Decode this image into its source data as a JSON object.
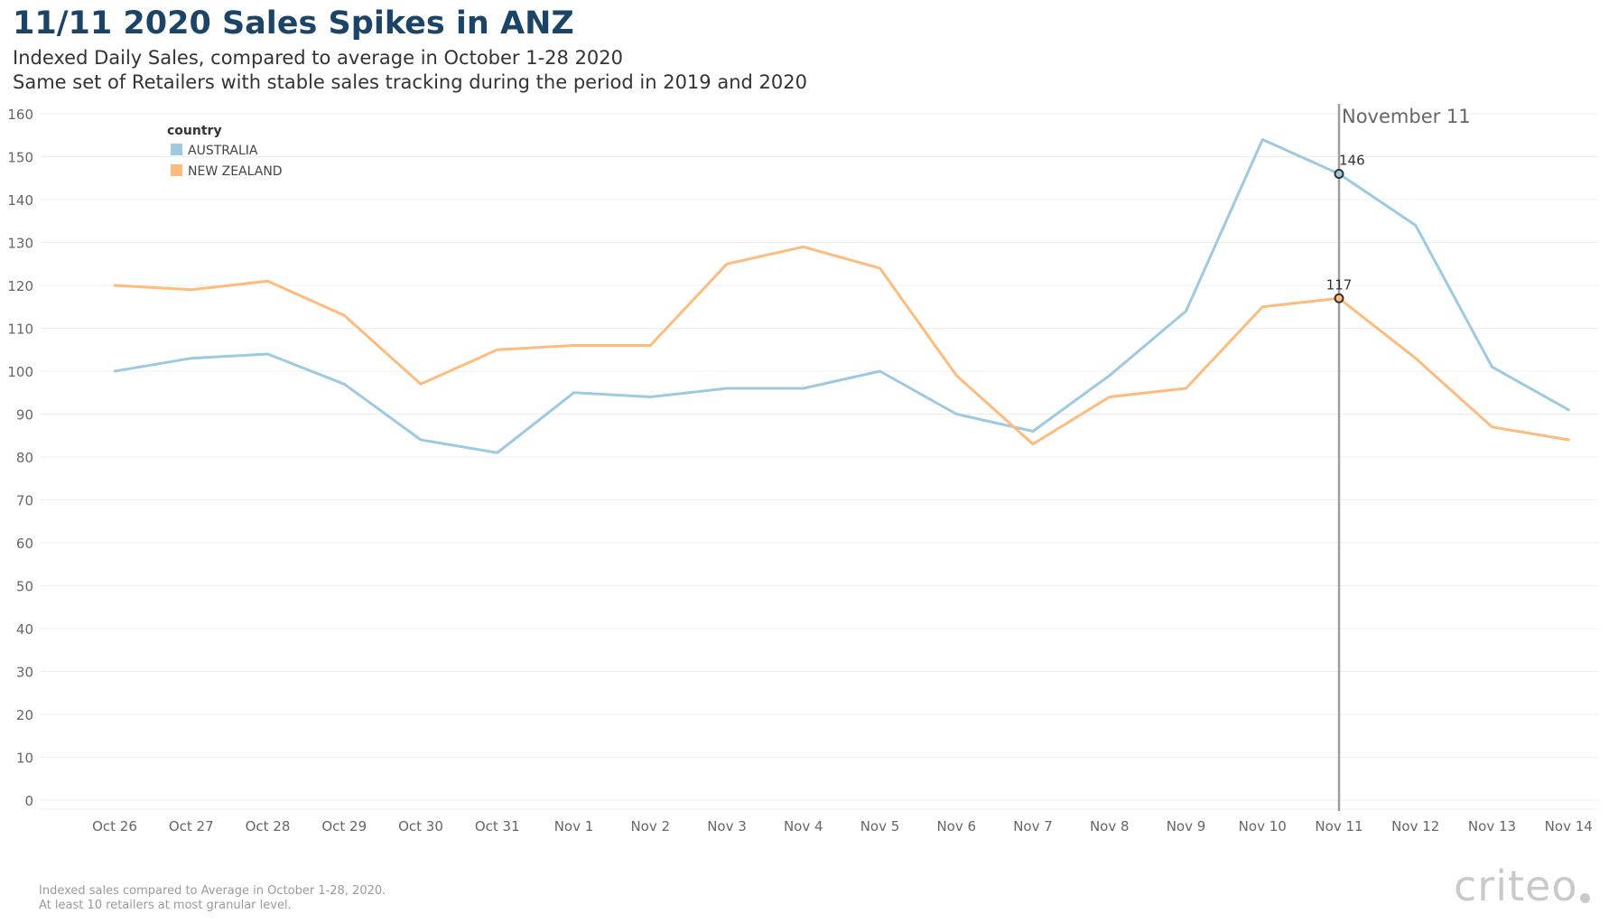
{
  "header": {
    "title": "11/11 2020 Sales Spikes in ANZ",
    "subtitle_1": "Indexed Daily Sales, compared to average in October 1-28 2020",
    "subtitle_2": "Same set of Retailers with stable sales tracking during the period in 2019 and 2020"
  },
  "footer": {
    "note_1": "Indexed sales compared to Average in October 1-28, 2020.",
    "note_2": "At least 10 retailers at most granular level.",
    "brand": "criteo"
  },
  "colors": {
    "australia": "#9ecae1",
    "new_zealand": "#fdbb7e",
    "reference_line": "#9e9e9e",
    "gridline": "#efefef",
    "title": "#1b4467"
  },
  "chart_data": {
    "type": "line",
    "legend_title": "country",
    "legend_position": "top-left",
    "categories": [
      "Oct 26",
      "Oct 27",
      "Oct 28",
      "Oct 29",
      "Oct 30",
      "Oct 31",
      "Nov 1",
      "Nov 2",
      "Nov 3",
      "Nov 4",
      "Nov 5",
      "Nov 6",
      "Nov 7",
      "Nov 8",
      "Nov 9",
      "Nov 10",
      "Nov 11",
      "Nov 12",
      "Nov 13",
      "Nov 14"
    ],
    "series": [
      {
        "name": "AUSTRALIA",
        "color": "#9ecae1",
        "values": [
          100,
          103,
          104,
          97,
          84,
          81,
          95,
          94,
          96,
          96,
          100,
          90,
          86,
          99,
          114,
          154,
          146,
          134,
          101,
          91
        ]
      },
      {
        "name": "NEW ZEALAND",
        "color": "#fdbb7e",
        "values": [
          120,
          119,
          121,
          113,
          97,
          105,
          106,
          106,
          125,
          129,
          124,
          99,
          83,
          94,
          96,
          115,
          117,
          103,
          87,
          84
        ]
      }
    ],
    "ylim": [
      0,
      160
    ],
    "yticks": [
      0,
      10,
      20,
      30,
      40,
      50,
      60,
      70,
      80,
      90,
      100,
      110,
      120,
      130,
      140,
      150,
      160
    ],
    "grid": true,
    "reference_line": {
      "category": "Nov 11",
      "label": "November 11"
    },
    "annotations": [
      {
        "category": "Nov 11",
        "series": "AUSTRALIA",
        "value": 146,
        "label": "146"
      },
      {
        "category": "Nov 11",
        "series": "NEW ZEALAND",
        "value": 117,
        "label": "117"
      }
    ]
  }
}
